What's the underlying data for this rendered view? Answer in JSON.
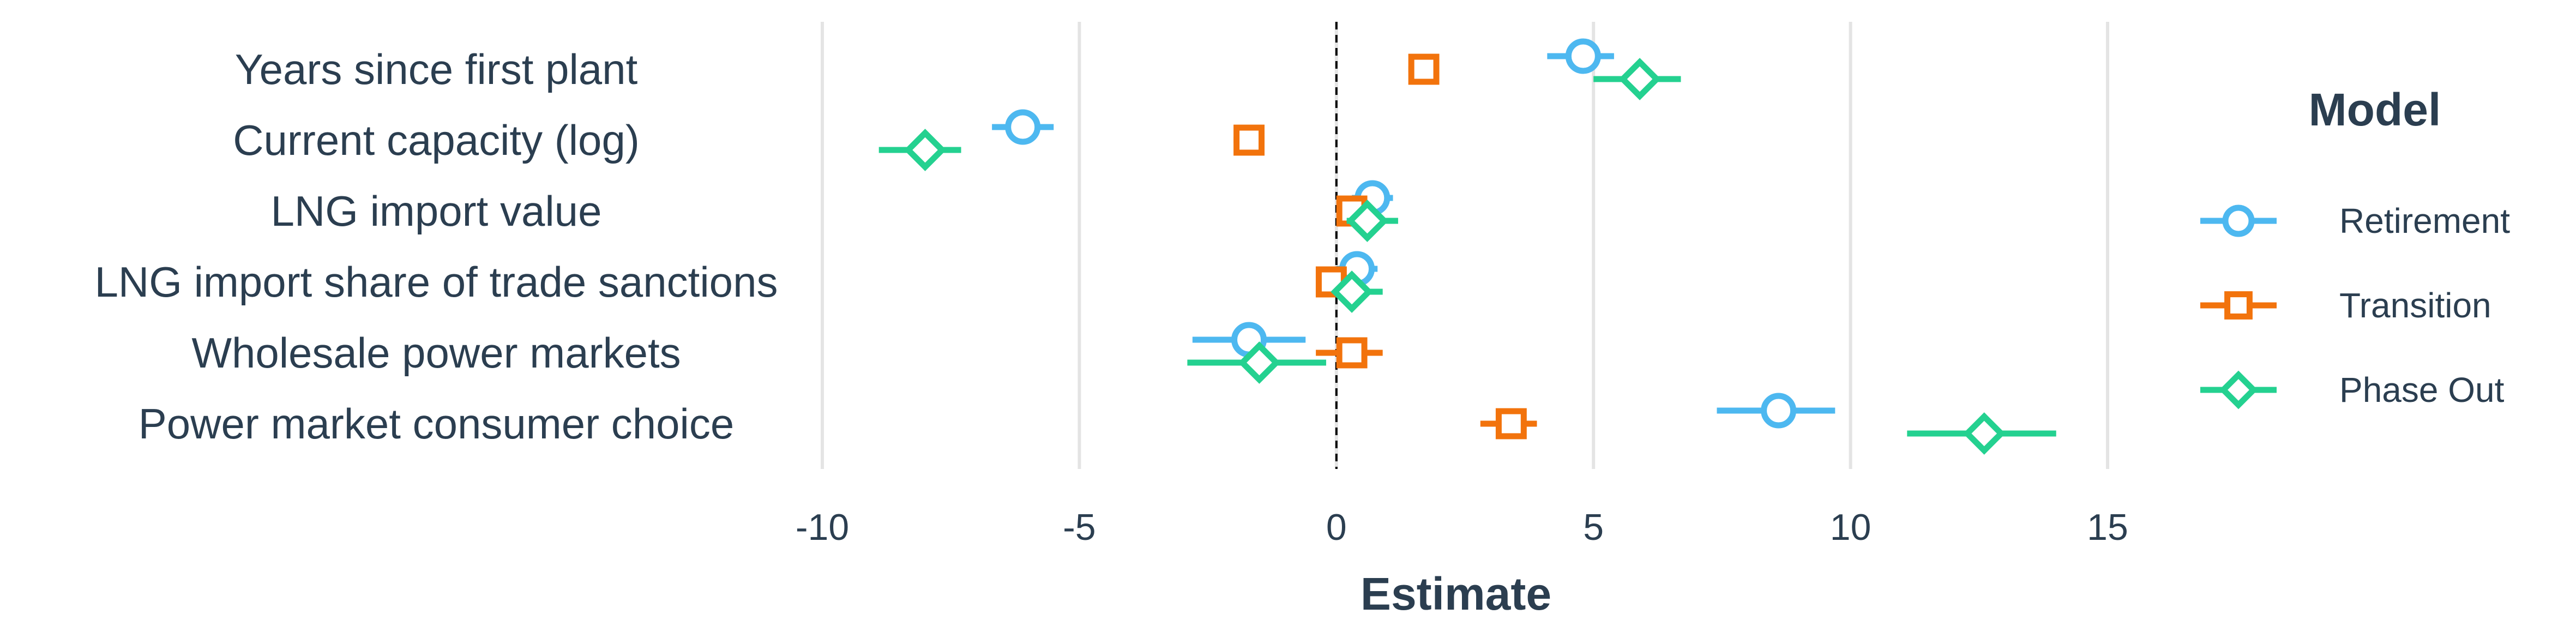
{
  "chart_data": {
    "type": "scatter",
    "xlabel": "Estimate",
    "xlim": [
      -10,
      15
    ],
    "xticks": [
      "-10",
      "-5",
      "0",
      "5",
      "10",
      "15"
    ],
    "grid": true,
    "reference_line_x": 0,
    "legend_title": "Model",
    "legend_position": "right",
    "categories": [
      "Years since first plant",
      "Current capacity (log)",
      "LNG import value",
      "LNG import share of trade sanctions",
      "Wholesale power markets",
      "Power market consumer choice"
    ],
    "series": [
      {
        "name": "Retirement",
        "color": "#4db8f0",
        "marker": "circle",
        "estimates": [
          4.8,
          -6.1,
          0.7,
          0.4,
          -1.7,
          8.6
        ],
        "ci_low": [
          4.1,
          -6.7,
          0.3,
          0.0,
          -2.8,
          7.4
        ],
        "ci_high": [
          5.4,
          -5.5,
          1.1,
          0.8,
          -0.6,
          9.7
        ]
      },
      {
        "name": "Transition",
        "color": "#f2730c",
        "marker": "square",
        "estimates": [
          1.7,
          -1.7,
          0.3,
          -0.1,
          0.3,
          3.4
        ],
        "ci_low": [
          1.4,
          -2.0,
          0.0,
          -0.4,
          -0.4,
          2.8
        ],
        "ci_high": [
          2.0,
          -1.4,
          0.6,
          0.2,
          0.9,
          3.9
        ]
      },
      {
        "name": "Phase Out",
        "color": "#24d190",
        "marker": "diamond",
        "estimates": [
          5.9,
          -8.0,
          0.6,
          0.3,
          -1.5,
          12.6
        ],
        "ci_low": [
          5.0,
          -8.9,
          0.2,
          0.0,
          -2.9,
          11.1
        ],
        "ci_high": [
          6.7,
          -7.3,
          1.2,
          0.9,
          -0.2,
          14.0
        ]
      }
    ]
  }
}
